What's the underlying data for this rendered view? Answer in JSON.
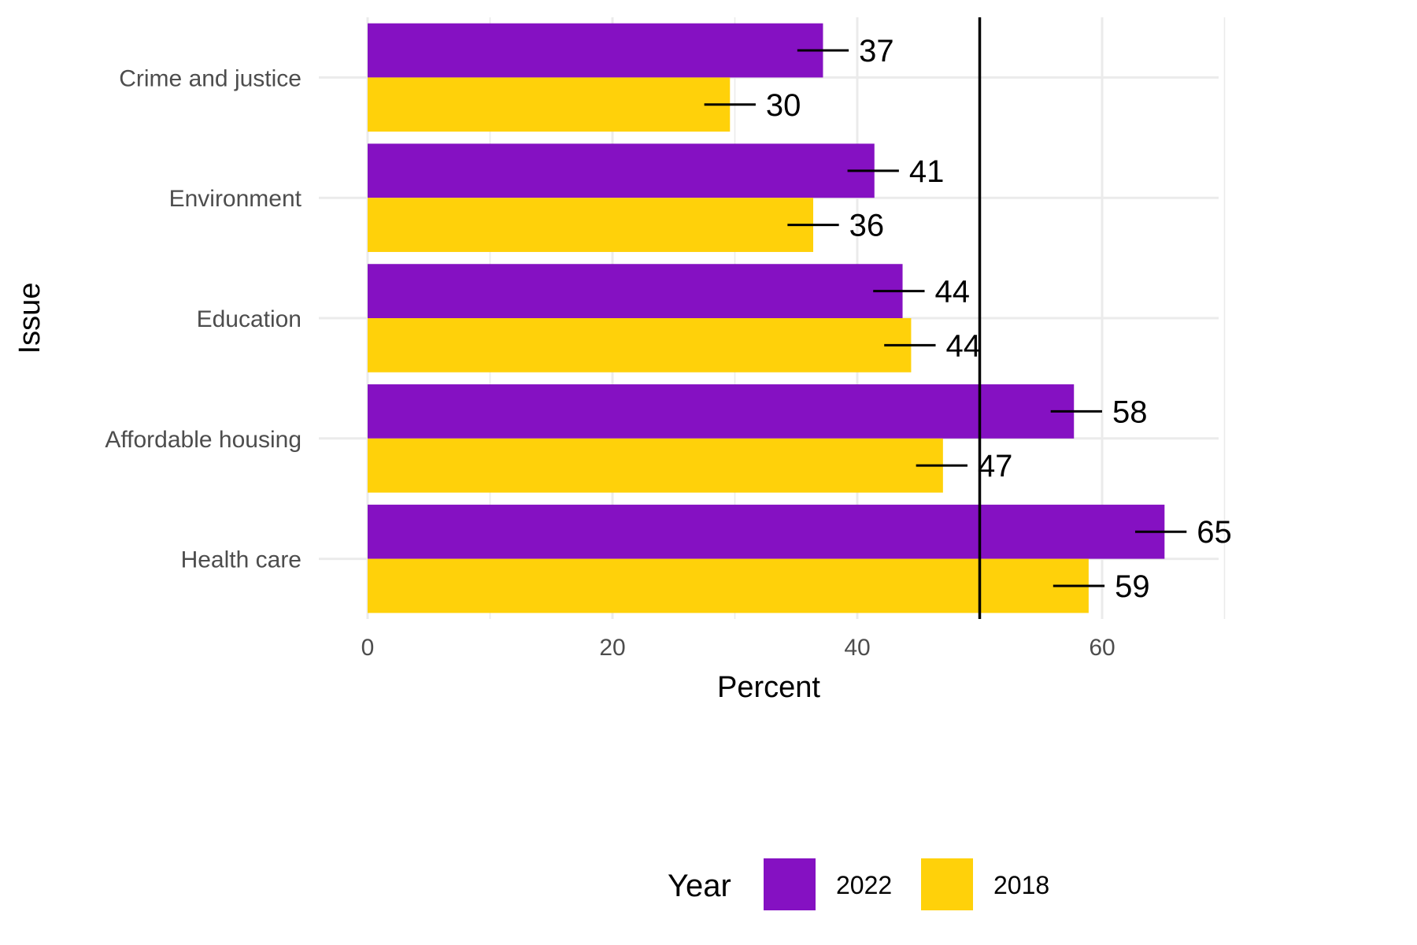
{
  "chart_data": {
    "type": "bar",
    "orientation": "horizontal",
    "categories": [
      "Crime and justice",
      "Environment",
      "Education",
      "Affordable housing",
      "Health care"
    ],
    "series": [
      {
        "name": "2022",
        "color": "#8511C2",
        "values": [
          37.2,
          41.4,
          43.7,
          57.7,
          65.1
        ],
        "labels": [
          "37",
          "41",
          "44",
          "58",
          "65"
        ],
        "error_center": [
          37.2,
          41.3,
          43.4,
          57.9,
          64.8
        ]
      },
      {
        "name": "2018",
        "color": "#FFD10A",
        "values": [
          29.6,
          36.4,
          44.4,
          47.0,
          58.9
        ],
        "labels": [
          "30",
          "36",
          "44",
          "47",
          "59"
        ],
        "error_center": [
          29.6,
          36.4,
          44.3,
          46.9,
          58.1
        ]
      }
    ],
    "error_half_width": 2.1,
    "reference_line": 50,
    "xlabel": "Percent",
    "ylabel": "Issue",
    "xlim": [
      0,
      70
    ],
    "x_ticks": [
      0,
      20,
      40,
      60
    ],
    "grid": true,
    "legend": {
      "title": "Year",
      "position": "bottom"
    }
  }
}
